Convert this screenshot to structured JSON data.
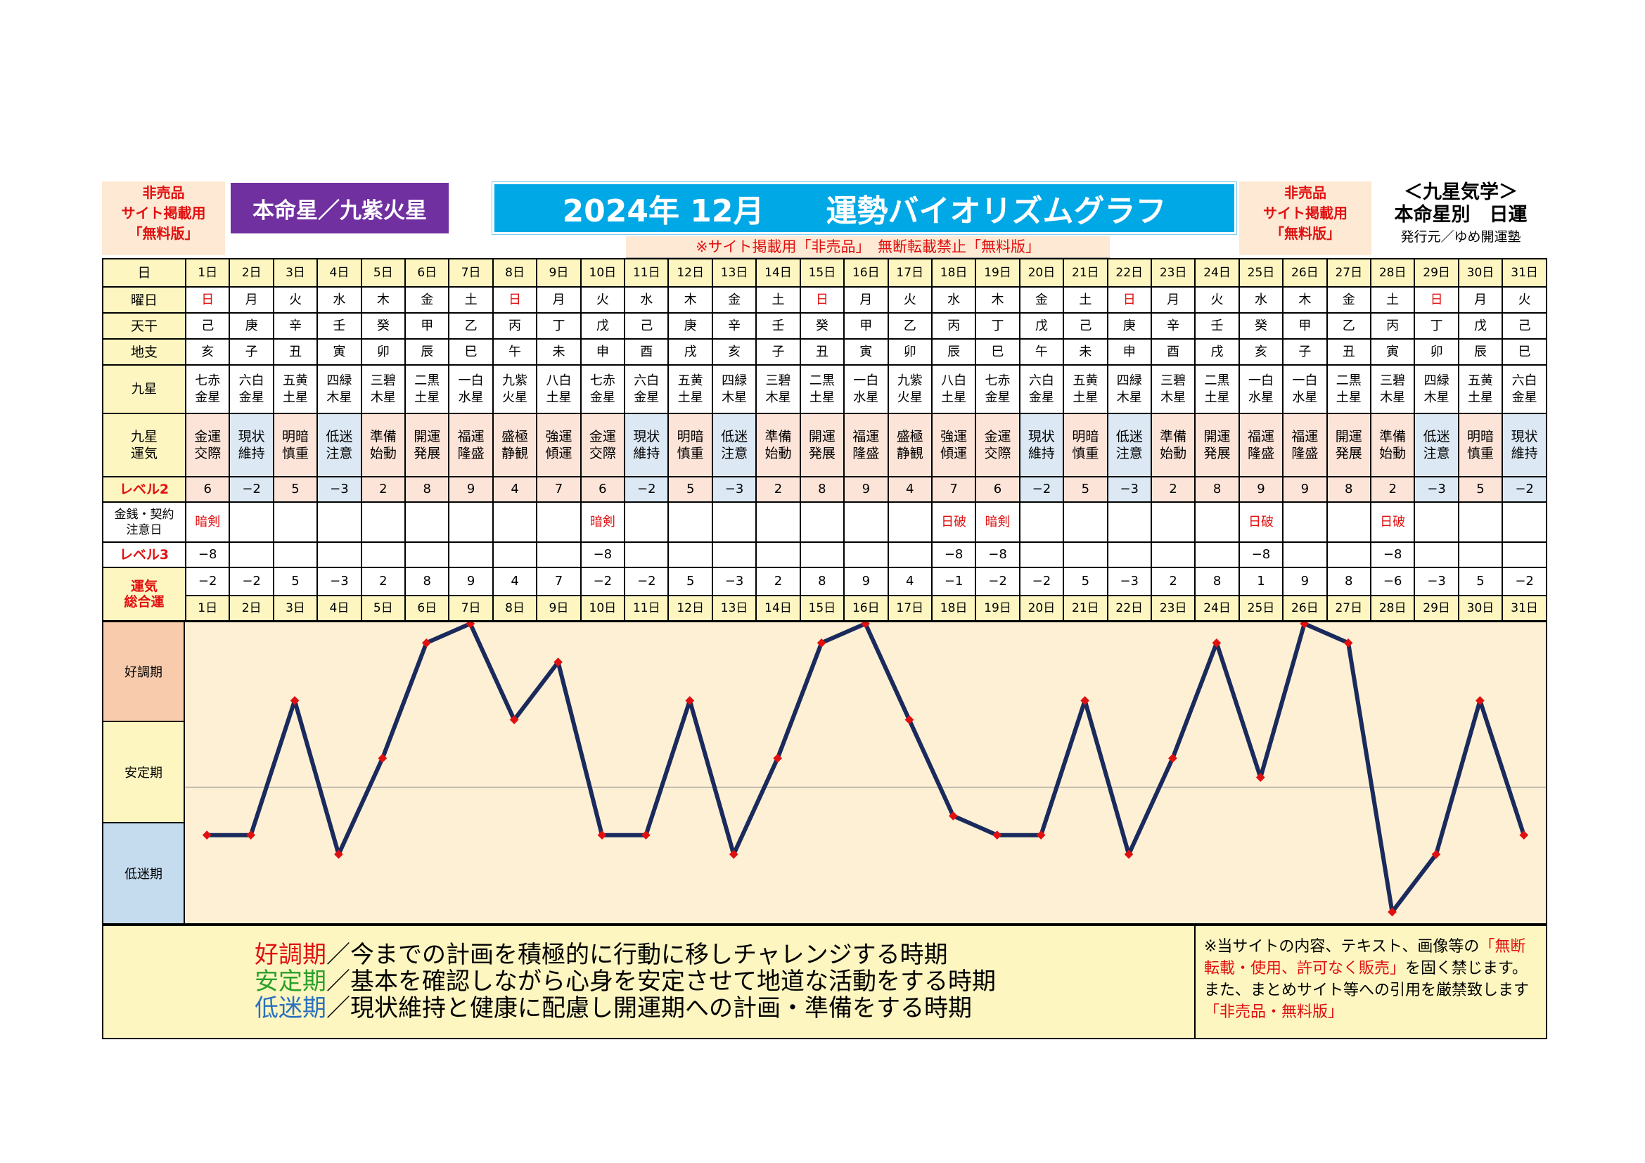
{
  "stamp_left": {
    "line1": "非売品",
    "line2": "サイト掲載用",
    "line3": "「無料版」"
  },
  "stamp_right": {
    "line1": "非売品",
    "line2": "サイト掲載用",
    "line3": "「無料版」"
  },
  "star_label": "本命星／九紫火星",
  "title": "2024年 12月　　運勢バイオリズムグラフ",
  "notice": "※サイト掲載用「非売品」　無断転載禁止「無料版」",
  "publisher": {
    "line1": "＜九星気学＞",
    "line2": "本命星別　日運",
    "line3": "発行元／ゆめ開運塾"
  },
  "row_labels": {
    "day": "日",
    "weekday": "曜日",
    "tenkan": "天干",
    "chishi": "地支",
    "kyusei": "九星",
    "unki": [
      "九星",
      "運気"
    ],
    "level2": "レベル2",
    "money": [
      "金銭・契約",
      "注意日"
    ],
    "level3": "レベル3",
    "total": [
      "運気",
      "総合運"
    ]
  },
  "periods": [
    "好調期",
    "安定期",
    "低迷期"
  ],
  "chart_data": {
    "type": "line",
    "title": "2024年 12月　　運勢バイオリズムグラフ",
    "x": [
      "1日",
      "2日",
      "3日",
      "4日",
      "5日",
      "6日",
      "7日",
      "8日",
      "9日",
      "10日",
      "11日",
      "12日",
      "13日",
      "14日",
      "15日",
      "16日",
      "17日",
      "18日",
      "19日",
      "20日",
      "21日",
      "22日",
      "23日",
      "24日",
      "25日",
      "26日",
      "27日",
      "28日",
      "29日",
      "30日",
      "31日"
    ],
    "weekday": [
      "日",
      "月",
      "火",
      "水",
      "木",
      "金",
      "土",
      "日",
      "月",
      "火",
      "水",
      "木",
      "金",
      "土",
      "日",
      "月",
      "火",
      "水",
      "木",
      "金",
      "土",
      "日",
      "月",
      "火",
      "水",
      "木",
      "金",
      "土",
      "日",
      "月",
      "火"
    ],
    "tenkan": [
      "己",
      "庚",
      "辛",
      "壬",
      "癸",
      "甲",
      "乙",
      "丙",
      "丁",
      "戊",
      "己",
      "庚",
      "辛",
      "壬",
      "癸",
      "甲",
      "乙",
      "丙",
      "丁",
      "戊",
      "己",
      "庚",
      "辛",
      "壬",
      "癸",
      "甲",
      "乙",
      "丙",
      "丁",
      "戊",
      "己"
    ],
    "chishi": [
      "亥",
      "子",
      "丑",
      "寅",
      "卯",
      "辰",
      "巳",
      "午",
      "未",
      "申",
      "酉",
      "戌",
      "亥",
      "子",
      "丑",
      "寅",
      "卯",
      "辰",
      "巳",
      "午",
      "未",
      "申",
      "酉",
      "戌",
      "亥",
      "子",
      "丑",
      "寅",
      "卯",
      "辰",
      "巳"
    ],
    "kyusei": [
      [
        "七赤",
        "金星"
      ],
      [
        "六白",
        "金星"
      ],
      [
        "五黄",
        "土星"
      ],
      [
        "四緑",
        "木星"
      ],
      [
        "三碧",
        "木星"
      ],
      [
        "二黒",
        "土星"
      ],
      [
        "一白",
        "水星"
      ],
      [
        "九紫",
        "火星"
      ],
      [
        "八白",
        "土星"
      ],
      [
        "七赤",
        "金星"
      ],
      [
        "六白",
        "金星"
      ],
      [
        "五黄",
        "土星"
      ],
      [
        "四緑",
        "木星"
      ],
      [
        "三碧",
        "木星"
      ],
      [
        "二黒",
        "土星"
      ],
      [
        "一白",
        "水星"
      ],
      [
        "九紫",
        "火星"
      ],
      [
        "八白",
        "土星"
      ],
      [
        "七赤",
        "金星"
      ],
      [
        "六白",
        "金星"
      ],
      [
        "五黄",
        "土星"
      ],
      [
        "四緑",
        "木星"
      ],
      [
        "三碧",
        "木星"
      ],
      [
        "二黒",
        "土星"
      ],
      [
        "一白",
        "水星"
      ],
      [
        "一白",
        "水星"
      ],
      [
        "二黒",
        "土星"
      ],
      [
        "三碧",
        "木星"
      ],
      [
        "四緑",
        "木星"
      ],
      [
        "五黄",
        "土星"
      ],
      [
        "六白",
        "金星"
      ]
    ],
    "unki": [
      [
        "金運",
        "交際"
      ],
      [
        "現状",
        "維持"
      ],
      [
        "明暗",
        "慎重"
      ],
      [
        "低迷",
        "注意"
      ],
      [
        "準備",
        "始動"
      ],
      [
        "開運",
        "発展"
      ],
      [
        "福運",
        "隆盛"
      ],
      [
        "盛極",
        "静観"
      ],
      [
        "強運",
        "傾運"
      ],
      [
        "金運",
        "交際"
      ],
      [
        "現状",
        "維持"
      ],
      [
        "明暗",
        "慎重"
      ],
      [
        "低迷",
        "注意"
      ],
      [
        "準備",
        "始動"
      ],
      [
        "開運",
        "発展"
      ],
      [
        "福運",
        "隆盛"
      ],
      [
        "盛極",
        "静観"
      ],
      [
        "強運",
        "傾運"
      ],
      [
        "金運",
        "交際"
      ],
      [
        "現状",
        "維持"
      ],
      [
        "明暗",
        "慎重"
      ],
      [
        "低迷",
        "注意"
      ],
      [
        "準備",
        "始動"
      ],
      [
        "開運",
        "発展"
      ],
      [
        "福運",
        "隆盛"
      ],
      [
        "福運",
        "隆盛"
      ],
      [
        "開運",
        "発展"
      ],
      [
        "準備",
        "始動"
      ],
      [
        "低迷",
        "注意"
      ],
      [
        "明暗",
        "慎重"
      ],
      [
        "現状",
        "維持"
      ]
    ],
    "level2": [
      "6",
      "−2",
      "5",
      "−3",
      "2",
      "8",
      "9",
      "4",
      "7",
      "6",
      "−2",
      "5",
      "−3",
      "2",
      "8",
      "9",
      "4",
      "7",
      "6",
      "−2",
      "5",
      "−3",
      "2",
      "8",
      "9",
      "9",
      "8",
      "2",
      "−3",
      "5",
      "−2"
    ],
    "money": [
      "暗剣",
      "",
      "",
      "",
      "",
      "",
      "",
      "",
      "",
      "暗剣",
      "",
      "",
      "",
      "",
      "",
      "",
      "",
      "日破",
      "暗剣",
      "",
      "",
      "",
      "",
      "",
      "日破",
      "",
      "",
      "日破",
      "",
      "",
      ""
    ],
    "level3": [
      "−8",
      "",
      "",
      "",
      "",
      "",
      "",
      "",
      "",
      "−8",
      "",
      "",
      "",
      "",
      "",
      "",
      "",
      "−8",
      "−8",
      "",
      "",
      "",
      "",
      "",
      "−8",
      "",
      "",
      "−8",
      "",
      "",
      ""
    ],
    "total_labels": [
      "−2",
      "−2",
      "5",
      "−3",
      "2",
      "8",
      "9",
      "4",
      "7",
      "−2",
      "−2",
      "5",
      "−3",
      "2",
      "8",
      "9",
      "4",
      "−1",
      "−2",
      "−2",
      "5",
      "−3",
      "2",
      "8",
      "1",
      "9",
      "8",
      "−6",
      "−3",
      "5",
      "−2"
    ],
    "values": [
      -2,
      -2,
      5,
      -3,
      2,
      8,
      9,
      4,
      7,
      -2,
      -2,
      5,
      -3,
      2,
      8,
      9,
      4,
      -1,
      -2,
      -2,
      5,
      -3,
      2,
      8,
      1,
      9,
      8,
      -6,
      -3,
      5,
      -2
    ],
    "ylim": [
      -6,
      9
    ],
    "line_color": "#1a2a5c",
    "marker_color": "#e01010"
  },
  "legend": [
    {
      "key": "好調期",
      "text": "／今までの計画を積極的に行動に移しチャレンジする時期",
      "color": "#e01010"
    },
    {
      "key": "安定期",
      "text": "／基本を確認しながら心身を安定させて地道な活動をする時期",
      "color": "#2aa02a"
    },
    {
      "key": "低迷期",
      "text": "／現状維持と健康に配慮し開運期への計画・準備をする時期",
      "color": "#2a70c0"
    }
  ],
  "warning": {
    "a": "※当サイトの内容、テキスト、画像等の",
    "b": "「無断転載・使用、許可なく販売」",
    "c": "を固く禁じます。また、まとめサイト等への引用を厳禁致します",
    "d": "「非売品・無料版」"
  }
}
